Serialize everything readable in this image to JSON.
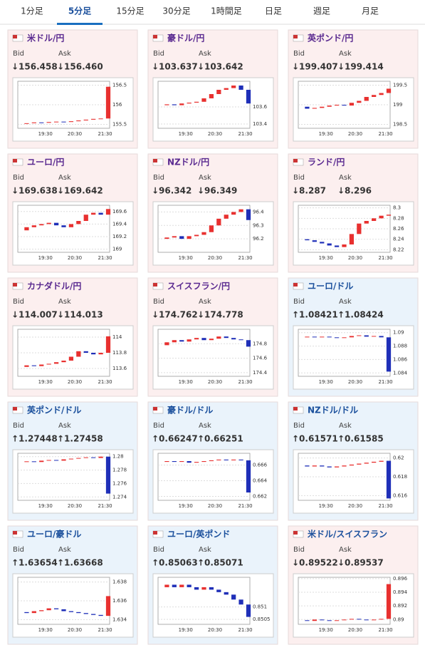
{
  "tabs": [
    {
      "label": "1分足",
      "selected": false
    },
    {
      "label": "5分足",
      "selected": true
    },
    {
      "label": "15分足",
      "selected": false
    },
    {
      "label": "30分足",
      "selected": false
    },
    {
      "label": "1時間足",
      "selected": false
    },
    {
      "label": "日足",
      "selected": false
    },
    {
      "label": "週足",
      "selected": false
    },
    {
      "label": "月足",
      "selected": false
    }
  ],
  "bid_label": "Bid",
  "ask_label": "Ask",
  "candle_colors": {
    "up": "#e8302f",
    "down": "#1f2fb8"
  },
  "cards": [
    {
      "name": "米ドル/円",
      "bid": "↓156.458",
      "ask": "↓156.460",
      "background": "#fcefef",
      "title_color": "#5a2a90",
      "price_color": "#d32f2f",
      "chart": {
        "type": "candlestick",
        "values": [
          155.52,
          155.53,
          155.55,
          155.54,
          155.56,
          155.57,
          155.56,
          155.58,
          155.6,
          155.62,
          155.64,
          155.65,
          156.46
        ],
        "ylim": [
          155.4,
          156.6
        ],
        "yticks": [
          155.5,
          156,
          156.5
        ],
        "xticks": [
          "19:30",
          "20:30",
          "21:30"
        ]
      }
    },
    {
      "name": "豪ドル/円",
      "bid": "↓103.637",
      "ask": "↓103.642",
      "background": "#fcefef",
      "title_color": "#5a2a90",
      "price_color": "#d32f2f",
      "chart": {
        "type": "candlestick",
        "values": [
          103.62,
          103.63,
          103.62,
          103.64,
          103.65,
          103.66,
          103.7,
          103.75,
          103.8,
          103.82,
          103.85,
          103.8,
          103.64
        ],
        "ylim": [
          103.35,
          103.9
        ],
        "yticks": [
          103.4,
          103.6
        ],
        "xticks": [
          "19:30",
          "20:30",
          "21:30"
        ]
      }
    },
    {
      "name": "英ポンド/円",
      "bid": "↓199.407",
      "ask": "↓199.414",
      "background": "#fcefef",
      "title_color": "#5a2a90",
      "price_color": "#d32f2f",
      "chart": {
        "type": "candlestick",
        "values": [
          198.95,
          198.9,
          198.92,
          198.95,
          198.98,
          199.0,
          198.98,
          199.05,
          199.1,
          199.2,
          199.25,
          199.3,
          199.41
        ],
        "ylim": [
          198.4,
          199.6
        ],
        "yticks": [
          198.5,
          199,
          199.5
        ],
        "xticks": [
          "19:30",
          "20:30",
          "21:30"
        ]
      }
    },
    {
      "name": "ユーロ/円",
      "bid": "↓169.638",
      "ask": "↓169.642",
      "background": "#fcefef",
      "title_color": "#5a2a90",
      "price_color": "#d32f2f",
      "chart": {
        "type": "candlestick",
        "values": [
          169.3,
          169.35,
          169.38,
          169.4,
          169.42,
          169.38,
          169.35,
          169.4,
          169.45,
          169.55,
          169.58,
          169.55,
          169.64
        ],
        "ylim": [
          168.95,
          169.7
        ],
        "yticks": [
          169,
          169.2,
          169.4,
          169.6
        ],
        "xticks": [
          "19:30",
          "20:30",
          "21:30"
        ]
      }
    },
    {
      "name": "NZドル/円",
      "bid": "↓96.342",
      "ask": "↓96.349",
      "background": "#fcefef",
      "title_color": "#5a2a90",
      "price_color": "#d32f2f",
      "chart": {
        "type": "candlestick",
        "values": [
          96.2,
          96.21,
          96.22,
          96.2,
          96.22,
          96.23,
          96.25,
          96.3,
          96.35,
          96.38,
          96.4,
          96.42,
          96.34
        ],
        "ylim": [
          96.1,
          96.45
        ],
        "yticks": [
          96.2,
          96.3,
          96.4
        ],
        "xticks": [
          "19:30",
          "20:30",
          "21:30"
        ]
      }
    },
    {
      "name": "ランド/円",
      "bid": "↓8.287",
      "ask": "↓8.296",
      "background": "#fcefef",
      "title_color": "#5a2a90",
      "price_color": "#d32f2f",
      "chart": {
        "type": "candlestick",
        "values": [
          8.24,
          8.238,
          8.235,
          8.232,
          8.228,
          8.225,
          8.23,
          8.25,
          8.27,
          8.275,
          8.28,
          8.285,
          8.287
        ],
        "ylim": [
          8.215,
          8.305
        ],
        "yticks": [
          8.22,
          8.24,
          8.26,
          8.28,
          8.3
        ],
        "xticks": [
          "19:30",
          "20:30",
          "21:30"
        ]
      }
    },
    {
      "name": "カナダドル/円",
      "bid": "↓114.007",
      "ask": "↓114.013",
      "background": "#fcefef",
      "title_color": "#5a2a90",
      "price_color": "#d32f2f",
      "chart": {
        "type": "candlestick",
        "values": [
          113.62,
          113.64,
          113.63,
          113.65,
          113.66,
          113.68,
          113.7,
          113.75,
          113.82,
          113.8,
          113.78,
          113.8,
          114.01
        ],
        "ylim": [
          113.5,
          114.1
        ],
        "yticks": [
          113.6,
          113.8,
          114
        ],
        "xticks": [
          "19:30",
          "20:30",
          "21:30"
        ]
      }
    },
    {
      "name": "スイスフラン/円",
      "bid": "↓174.762",
      "ask": "↓174.778",
      "background": "#fcefef",
      "title_color": "#5a2a90",
      "price_color": "#d32f2f",
      "chart": {
        "type": "candlestick",
        "values": [
          174.78,
          174.82,
          174.85,
          174.83,
          174.86,
          174.88,
          174.85,
          174.87,
          174.9,
          174.88,
          174.86,
          174.85,
          174.76
        ],
        "ylim": [
          174.35,
          175.0
        ],
        "yticks": [
          174.4,
          174.6,
          174.8
        ],
        "xticks": [
          "19:30",
          "20:30",
          "21:30"
        ]
      }
    },
    {
      "name": "ユーロ/ドル",
      "bid": "↑1.08421",
      "ask": "↑1.08424",
      "background": "#eaf3fb",
      "title_color": "#1a4f9c",
      "price_color": "#1a8a8a",
      "chart": {
        "type": "candlestick",
        "values": [
          1.0893,
          1.0894,
          1.0893,
          1.0894,
          1.0893,
          1.0892,
          1.0893,
          1.0895,
          1.0896,
          1.0894,
          1.0895,
          1.0893,
          1.0842
        ],
        "ylim": [
          1.0835,
          1.0905
        ],
        "yticks": [
          1.084,
          1.086,
          1.088,
          1.09
        ],
        "xticks": [
          "19:30",
          "20:30",
          "21:30"
        ]
      }
    },
    {
      "name": "英ポンド/ドル",
      "bid": "↑1.27448",
      "ask": "↑1.27458",
      "background": "#eaf3fb",
      "title_color": "#1a4f9c",
      "price_color": "#1a8a8a",
      "chart": {
        "type": "candlestick",
        "values": [
          1.2792,
          1.2793,
          1.2792,
          1.2794,
          1.2795,
          1.2794,
          1.2796,
          1.2797,
          1.2798,
          1.2799,
          1.2798,
          1.28,
          1.2745
        ],
        "ylim": [
          1.2735,
          1.2805
        ],
        "yticks": [
          1.274,
          1.276,
          1.278,
          1.28
        ],
        "xticks": [
          "19:30",
          "20:30",
          "21:30"
        ]
      }
    },
    {
      "name": "豪ドル/ドル",
      "bid": "↑0.66247",
      "ask": "↑0.66251",
      "background": "#eaf3fb",
      "title_color": "#1a4f9c",
      "price_color": "#1a8a8a",
      "chart": {
        "type": "candlestick",
        "values": [
          0.6664,
          0.6665,
          0.6664,
          0.6665,
          0.6663,
          0.6664,
          0.6665,
          0.6666,
          0.6667,
          0.6666,
          0.6667,
          0.6666,
          0.6625
        ],
        "ylim": [
          0.6615,
          0.6675
        ],
        "yticks": [
          0.662,
          0.664,
          0.666
        ],
        "xticks": [
          "19:30",
          "20:30",
          "21:30"
        ]
      }
    },
    {
      "name": "NZドル/ドル",
      "bid": "↑0.61571",
      "ask": "↑0.61585",
      "background": "#eaf3fb",
      "title_color": "#1a4f9c",
      "price_color": "#1a8a8a",
      "chart": {
        "type": "candlestick",
        "values": [
          0.6192,
          0.6191,
          0.6192,
          0.6191,
          0.619,
          0.6191,
          0.6192,
          0.6193,
          0.6194,
          0.6195,
          0.6196,
          0.6197,
          0.6157
        ],
        "ylim": [
          0.6155,
          0.6205
        ],
        "yticks": [
          0.616,
          0.618,
          0.62
        ],
        "xticks": [
          "19:30",
          "20:30",
          "21:30"
        ]
      }
    },
    {
      "name": "ユーロ/豪ドル",
      "bid": "↑1.63654",
      "ask": "↑1.63668",
      "background": "#eaf3fb",
      "title_color": "#1a4f9c",
      "price_color": "#1a8a8a",
      "chart": {
        "type": "candlestick",
        "values": [
          1.6348,
          1.6347,
          1.6349,
          1.635,
          1.6352,
          1.6351,
          1.6349,
          1.6348,
          1.6347,
          1.6346,
          1.6345,
          1.6344,
          1.6365
        ],
        "ylim": [
          1.6335,
          1.6385
        ],
        "yticks": [
          1.634,
          1.636,
          1.638
        ],
        "xticks": [
          "19:30",
          "20:30",
          "21:30"
        ]
      }
    },
    {
      "name": "ユーロ/英ポンド",
      "bid": "↑0.85063",
      "ask": "↑0.85071",
      "background": "#eaf3fb",
      "title_color": "#1a4f9c",
      "price_color": "#1a8a8a",
      "chart": {
        "type": "candlestick",
        "values": [
          0.8518,
          0.8519,
          0.8518,
          0.8519,
          0.8518,
          0.8517,
          0.8518,
          0.8517,
          0.8516,
          0.8515,
          0.8513,
          0.8511,
          0.8506
        ],
        "ylim": [
          0.8503,
          0.8522
        ],
        "yticks": [
          0.8505,
          0.851
        ],
        "xticks": [
          "19:30",
          "20:30",
          "21:30"
        ]
      }
    },
    {
      "name": "米ドル/スイスフラン",
      "bid": "↓0.89522",
      "ask": "↓0.89537",
      "background": "#fcefef",
      "title_color": "#1a4f9c",
      "price_color": "#d32f2f",
      "chart": {
        "type": "candlestick",
        "values": [
          0.8899,
          0.8898,
          0.89,
          0.8899,
          0.8898,
          0.8899,
          0.89,
          0.8901,
          0.89,
          0.8899,
          0.89,
          0.8901,
          0.8952
        ],
        "ylim": [
          0.8893,
          0.8962
        ],
        "yticks": [
          0.89,
          0.892,
          0.894,
          0.896
        ],
        "xticks": [
          "19:30",
          "20:30",
          "21:30"
        ]
      }
    }
  ]
}
